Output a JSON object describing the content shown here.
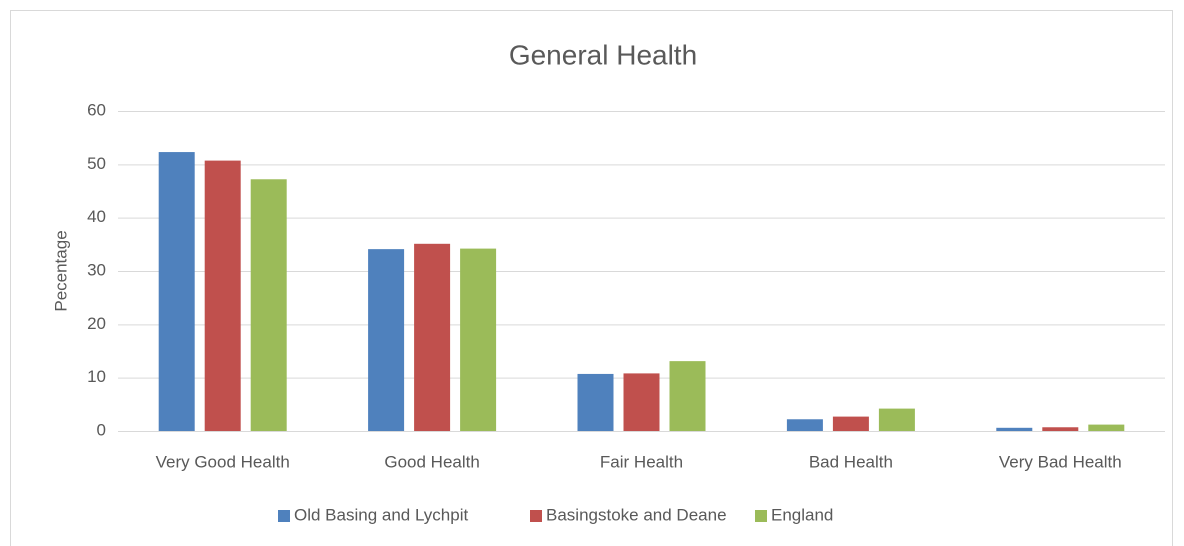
{
  "chart_data": {
    "type": "bar",
    "title": "General Health",
    "y_label": "Pecentage",
    "categories": [
      "Very Good Health",
      "Good Health",
      "Fair Health",
      "Bad Health",
      "Very Bad Health"
    ],
    "series": [
      {
        "name": "Old Basing and Lychpit",
        "color": "#4f81bd",
        "values": [
          52.3,
          34.1,
          10.7,
          2.2,
          0.6
        ]
      },
      {
        "name": "Basingstoke and Deane",
        "color": "#c0504d",
        "values": [
          50.7,
          35.1,
          10.8,
          2.7,
          0.7
        ]
      },
      {
        "name": "England",
        "color": "#9bbb59",
        "values": [
          47.2,
          34.2,
          13.1,
          4.2,
          1.2
        ]
      }
    ],
    "ylim": [
      0,
      60
    ],
    "yticks": [
      0,
      10,
      20,
      30,
      40,
      50,
      60
    ],
    "grid": true,
    "legend": "bottom"
  }
}
